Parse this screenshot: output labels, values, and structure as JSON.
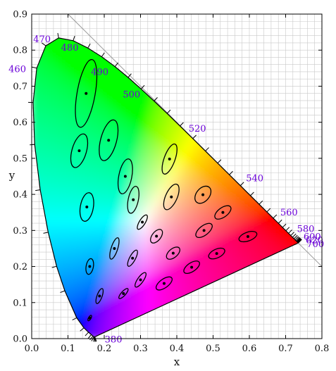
{
  "chart_data": {
    "type": "scatter",
    "xlabel": "x",
    "ylabel": "y",
    "xlim": [
      0.0,
      0.8
    ],
    "ylim": [
      0.0,
      0.9
    ],
    "grid": true,
    "x_ticks": [
      "0.0",
      "0.1",
      "0.2",
      "0.3",
      "0.4",
      "0.5",
      "0.6",
      "0.7",
      "0.8"
    ],
    "y_ticks": [
      "0.0",
      "0.1",
      "0.2",
      "0.3",
      "0.4",
      "0.5",
      "0.6",
      "0.7",
      "0.8",
      "0.9"
    ],
    "label_color": "#6a00d8",
    "locus": [
      [
        0.1741,
        0.005
      ],
      [
        0.1738,
        0.0049
      ],
      [
        0.1733,
        0.0048
      ],
      [
        0.1726,
        0.0048
      ],
      [
        0.1714,
        0.0051
      ],
      [
        0.1689,
        0.0069
      ],
      [
        0.1644,
        0.0109
      ],
      [
        0.1566,
        0.0177
      ],
      [
        0.144,
        0.0297
      ],
      [
        0.1241,
        0.0578
      ],
      [
        0.0913,
        0.1327
      ],
      [
        0.0687,
        0.2007
      ],
      [
        0.0454,
        0.295
      ],
      [
        0.0235,
        0.4127
      ],
      [
        0.0082,
        0.5384
      ],
      [
        0.0039,
        0.6548
      ],
      [
        0.0139,
        0.7502
      ],
      [
        0.0389,
        0.812
      ],
      [
        0.0743,
        0.8338
      ],
      [
        0.1142,
        0.8262
      ],
      [
        0.1547,
        0.8059
      ],
      [
        0.1929,
        0.7816
      ],
      [
        0.2296,
        0.7543
      ],
      [
        0.2658,
        0.7243
      ],
      [
        0.3016,
        0.6923
      ],
      [
        0.3373,
        0.6589
      ],
      [
        0.3731,
        0.6245
      ],
      [
        0.4087,
        0.5896
      ],
      [
        0.4441,
        0.5547
      ],
      [
        0.4788,
        0.5202
      ],
      [
        0.5125,
        0.4866
      ],
      [
        0.5448,
        0.4544
      ],
      [
        0.5752,
        0.4242
      ],
      [
        0.6029,
        0.3965
      ],
      [
        0.627,
        0.3725
      ],
      [
        0.6482,
        0.3514
      ],
      [
        0.6658,
        0.334
      ],
      [
        0.6801,
        0.3197
      ],
      [
        0.6915,
        0.3083
      ],
      [
        0.7006,
        0.2993
      ],
      [
        0.7079,
        0.292
      ],
      [
        0.714,
        0.2859
      ],
      [
        0.719,
        0.2809
      ],
      [
        0.723,
        0.277
      ],
      [
        0.726,
        0.274
      ],
      [
        0.7283,
        0.2717
      ],
      [
        0.73,
        0.27
      ],
      [
        0.7311,
        0.2689
      ],
      [
        0.732,
        0.268
      ],
      [
        0.7327,
        0.2673
      ],
      [
        0.7334,
        0.2666
      ],
      [
        0.734,
        0.266
      ],
      [
        0.7344,
        0.2656
      ],
      [
        0.7346,
        0.2654
      ],
      [
        0.7347,
        0.2653
      ]
    ],
    "wavelength_labels": [
      {
        "label": "380",
        "wl": 380
      },
      {
        "label": "460",
        "wl": 460
      },
      {
        "label": "470",
        "wl": 470
      },
      {
        "label": "480",
        "wl": 480
      },
      {
        "label": "490",
        "wl": 490
      },
      {
        "label": "500",
        "wl": 500
      },
      {
        "label": "520",
        "wl": 520
      },
      {
        "label": "540",
        "wl": 540
      },
      {
        "label": "560",
        "wl": 560
      },
      {
        "label": "580",
        "wl": 580
      },
      {
        "label": "600",
        "wl": 600
      },
      {
        "label": "620",
        "wl": 620
      },
      {
        "label": "700",
        "wl": 700
      }
    ],
    "ellipses": [
      {
        "x": 0.16,
        "y": 0.057,
        "a": 0.0085,
        "b": 0.0035,
        "angle": 60
      },
      {
        "x": 0.187,
        "y": 0.118,
        "a": 0.022,
        "b": 0.007,
        "angle": 70
      },
      {
        "x": 0.253,
        "y": 0.125,
        "a": 0.018,
        "b": 0.006,
        "angle": 48
      },
      {
        "x": 0.15,
        "y": 0.68,
        "a": 0.095,
        "b": 0.025,
        "angle": 80
      },
      {
        "x": 0.131,
        "y": 0.521,
        "a": 0.048,
        "b": 0.02,
        "angle": 74
      },
      {
        "x": 0.212,
        "y": 0.55,
        "a": 0.058,
        "b": 0.022,
        "angle": 75
      },
      {
        "x": 0.258,
        "y": 0.45,
        "a": 0.049,
        "b": 0.018,
        "angle": 79
      },
      {
        "x": 0.152,
        "y": 0.365,
        "a": 0.04,
        "b": 0.018,
        "angle": 80
      },
      {
        "x": 0.28,
        "y": 0.385,
        "a": 0.038,
        "b": 0.014,
        "angle": 78
      },
      {
        "x": 0.38,
        "y": 0.498,
        "a": 0.044,
        "b": 0.015,
        "angle": 70
      },
      {
        "x": 0.16,
        "y": 0.2,
        "a": 0.022,
        "b": 0.01,
        "angle": 80
      },
      {
        "x": 0.228,
        "y": 0.25,
        "a": 0.031,
        "b": 0.009,
        "angle": 72
      },
      {
        "x": 0.305,
        "y": 0.323,
        "a": 0.023,
        "b": 0.008,
        "angle": 58
      },
      {
        "x": 0.385,
        "y": 0.393,
        "a": 0.038,
        "b": 0.016,
        "angle": 66
      },
      {
        "x": 0.472,
        "y": 0.399,
        "a": 0.027,
        "b": 0.018,
        "angle": 50
      },
      {
        "x": 0.527,
        "y": 0.35,
        "a": 0.026,
        "b": 0.013,
        "angle": 36
      },
      {
        "x": 0.475,
        "y": 0.3,
        "a": 0.027,
        "b": 0.013,
        "angle": 38
      },
      {
        "x": 0.51,
        "y": 0.236,
        "a": 0.024,
        "b": 0.012,
        "angle": 25
      },
      {
        "x": 0.596,
        "y": 0.283,
        "a": 0.026,
        "b": 0.012,
        "angle": 20
      },
      {
        "x": 0.344,
        "y": 0.284,
        "a": 0.022,
        "b": 0.012,
        "angle": 52
      },
      {
        "x": 0.39,
        "y": 0.237,
        "a": 0.022,
        "b": 0.012,
        "angle": 40
      },
      {
        "x": 0.441,
        "y": 0.198,
        "a": 0.025,
        "b": 0.012,
        "angle": 34
      },
      {
        "x": 0.278,
        "y": 0.223,
        "a": 0.025,
        "b": 0.008,
        "angle": 62
      },
      {
        "x": 0.3,
        "y": 0.163,
        "a": 0.024,
        "b": 0.008,
        "angle": 55
      },
      {
        "x": 0.365,
        "y": 0.153,
        "a": 0.026,
        "b": 0.012,
        "angle": 36
      }
    ]
  }
}
